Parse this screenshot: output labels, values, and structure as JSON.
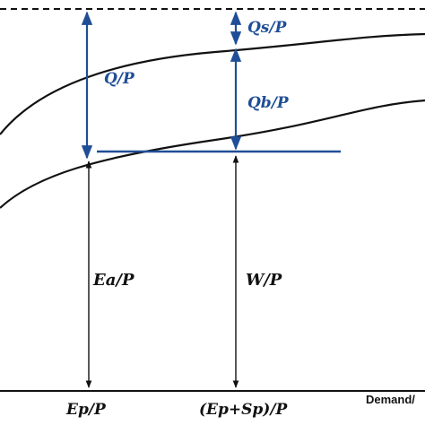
{
  "labels": {
    "qs_over_p": "Qs/P",
    "q_over_p": "Q/P",
    "qb_over_p": "Qb/P",
    "ea_over_p": "Ea/P",
    "w_over_p": "W/P",
    "ep_over_p": "Ep/P",
    "ep_sp_over_p": "(Ep+Sp)/P",
    "demand_axis": "Demand/"
  },
  "colors": {
    "blue": "#1f4e96",
    "black": "#111111"
  }
}
